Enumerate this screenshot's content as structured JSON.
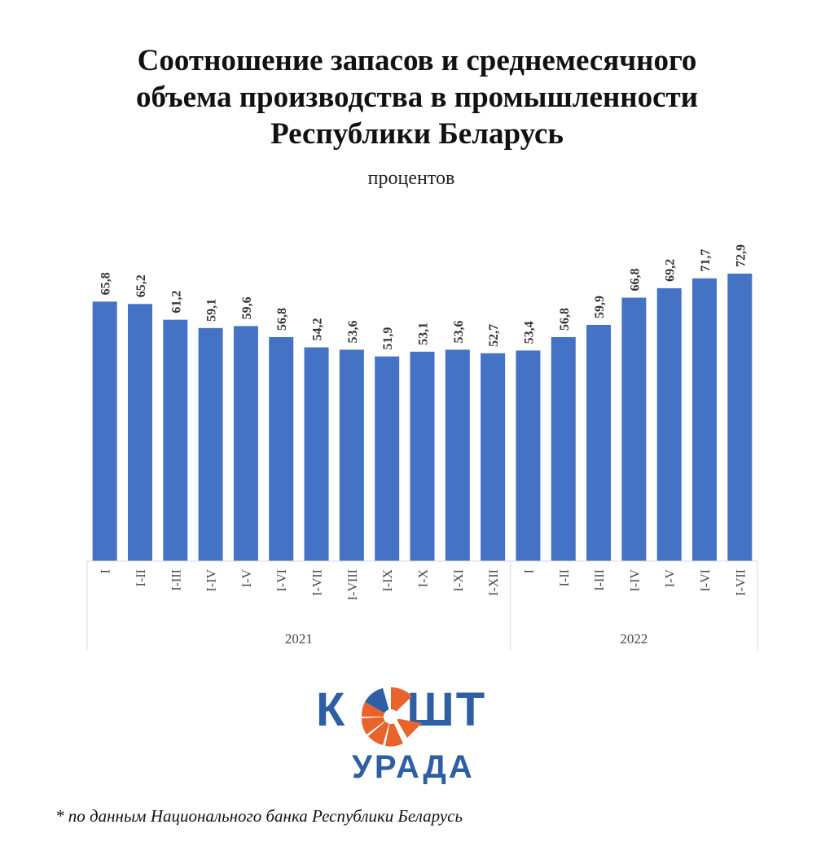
{
  "chart_data": {
    "type": "bar",
    "title": "Соотношение запасов и среднемесячного объема производства в промышленности Республики Беларусь",
    "title_lines": [
      "Соотношение запасов и среднемесячного",
      "объема производства в промышленности",
      "Республики Беларусь"
    ],
    "subtitle": "процентов",
    "categories": [
      "I",
      "I-II",
      "I-III",
      "I-IV",
      "I-V",
      "I-VI",
      "I-VII",
      "I-VIII",
      "I-IX",
      "I-X",
      "I-XI",
      "I-XII",
      "I",
      "I-II",
      "I-III",
      "I-IV",
      "I-V",
      "I-VI",
      "I-VII"
    ],
    "groups": [
      {
        "label": "2021",
        "count": 12
      },
      {
        "label": "2022",
        "count": 7
      }
    ],
    "values": [
      65.8,
      65.2,
      61.2,
      59.1,
      59.6,
      56.8,
      54.2,
      53.6,
      51.9,
      53.1,
      53.6,
      52.7,
      53.4,
      56.8,
      59.9,
      66.8,
      69.2,
      71.7,
      72.9
    ],
    "data_labels": [
      "65,8",
      "65,2",
      "61,2",
      "59,1",
      "59,6",
      "56,8",
      "54,2",
      "53,6",
      "51,9",
      "53,1",
      "53,6",
      "52,7",
      "53,4",
      "56,8",
      "59,9",
      "66,8",
      "69,2",
      "71,7",
      "72,9"
    ],
    "ylim": [
      0,
      72.9
    ],
    "bar_color": "#4472c4",
    "grid": false,
    "legend": "none"
  },
  "logo": {
    "top": "К   ШТ",
    "bottom": "УРАДА",
    "orange": "#e8642c",
    "blue": "#2e5ea4"
  },
  "footnote": "* по данным Национального банка Республики Беларусь"
}
